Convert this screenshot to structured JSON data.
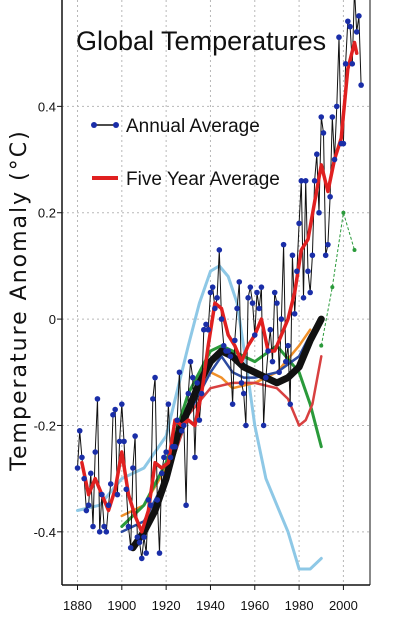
{
  "chart_data": {
    "type": "line",
    "title": "Global Temperatures",
    "xlabel": "",
    "ylabel": "Temperature Anomaly (°C)",
    "xlim": [
      1873,
      2012
    ],
    "ylim": [
      -0.5,
      0.6
    ],
    "x_ticks": [
      1880,
      1900,
      1920,
      1940,
      1960,
      1980,
      2000
    ],
    "y_ticks": [
      -0.4,
      -0.2,
      0,
      0.2,
      0.4
    ],
    "y_tick_labels": [
      "-0.4",
      "-0.2",
      "0",
      "0.2",
      "0.4"
    ],
    "grid": "dotted",
    "legend": {
      "position": "top-left",
      "entries": [
        {
          "label": "Annual Average",
          "color": "#1a2ea8",
          "style": "line-with-markers"
        },
        {
          "label": "Five Year Average",
          "color": "#e02020",
          "style": "thick-line"
        }
      ]
    },
    "series": [
      {
        "name": "Annual Average",
        "color": "#1a2ea8",
        "line_color": "#111111",
        "markers": true,
        "x": [
          1880,
          1881,
          1882,
          1883,
          1884,
          1885,
          1886,
          1887,
          1888,
          1889,
          1890,
          1891,
          1892,
          1893,
          1894,
          1895,
          1896,
          1897,
          1898,
          1899,
          1900,
          1901,
          1902,
          1903,
          1904,
          1905,
          1906,
          1907,
          1908,
          1909,
          1910,
          1911,
          1912,
          1913,
          1914,
          1915,
          1916,
          1917,
          1918,
          1919,
          1920,
          1921,
          1922,
          1923,
          1924,
          1925,
          1926,
          1927,
          1928,
          1929,
          1930,
          1931,
          1932,
          1933,
          1934,
          1935,
          1936,
          1937,
          1938,
          1939,
          1940,
          1941,
          1942,
          1943,
          1944,
          1945,
          1946,
          1947,
          1948,
          1949,
          1950,
          1951,
          1952,
          1953,
          1954,
          1955,
          1956,
          1957,
          1958,
          1959,
          1960,
          1961,
          1962,
          1963,
          1964,
          1965,
          1966,
          1967,
          1968,
          1969,
          1970,
          1971,
          1972,
          1973,
          1974,
          1975,
          1976,
          1977,
          1978,
          1979,
          1980,
          1981,
          1982,
          1983,
          1984,
          1985,
          1986,
          1987,
          1988,
          1989,
          1990,
          1991,
          1992,
          1993,
          1994,
          1995,
          1996,
          1997,
          1998,
          1999,
          2000,
          2001,
          2002,
          2003,
          2004,
          2005,
          2006,
          2007,
          2008
        ],
        "values": [
          -0.28,
          -0.21,
          -0.26,
          -0.3,
          -0.36,
          -0.35,
          -0.29,
          -0.39,
          -0.25,
          -0.15,
          -0.4,
          -0.33,
          -0.39,
          -0.4,
          -0.35,
          -0.31,
          -0.18,
          -0.17,
          -0.33,
          -0.23,
          -0.16,
          -0.23,
          -0.32,
          -0.39,
          -0.43,
          -0.28,
          -0.22,
          -0.41,
          -0.42,
          -0.45,
          -0.41,
          -0.44,
          -0.34,
          -0.35,
          -0.15,
          -0.11,
          -0.34,
          -0.44,
          -0.29,
          -0.26,
          -0.25,
          -0.16,
          -0.26,
          -0.24,
          -0.24,
          -0.19,
          -0.1,
          -0.21,
          -0.2,
          -0.35,
          -0.14,
          -0.08,
          -0.11,
          -0.26,
          -0.12,
          -0.19,
          -0.14,
          -0.02,
          -0.01,
          -0.02,
          0.05,
          0.06,
          0.02,
          0.04,
          0.13,
          0.0,
          -0.05,
          -0.06,
          -0.06,
          -0.07,
          -0.16,
          -0.04,
          0.02,
          0.07,
          -0.12,
          -0.14,
          -0.2,
          0.04,
          0.06,
          0.03,
          -0.03,
          0.05,
          0.02,
          0.06,
          -0.2,
          -0.11,
          -0.06,
          -0.02,
          -0.08,
          0.05,
          0.03,
          -0.1,
          0.0,
          0.14,
          -0.08,
          -0.05,
          -0.16,
          0.12,
          0.01,
          0.09,
          0.18,
          0.26,
          0.04,
          0.26,
          0.09,
          0.05,
          0.12,
          0.26,
          0.31,
          0.2,
          0.38,
          0.35,
          0.12,
          0.14,
          0.23,
          0.38,
          0.3,
          0.4,
          0.53,
          0.33,
          0.33,
          0.48,
          0.56,
          0.55,
          0.48,
          0.62,
          0.54,
          0.57,
          0.44
        ]
      },
      {
        "name": "Five Year Average",
        "color": "#e02020",
        "x": [
          1882,
          1885,
          1888,
          1891,
          1894,
          1897,
          1900,
          1903,
          1906,
          1909,
          1912,
          1915,
          1918,
          1921,
          1924,
          1927,
          1930,
          1933,
          1936,
          1939,
          1942,
          1945,
          1948,
          1951,
          1954,
          1957,
          1960,
          1963,
          1966,
          1969,
          1972,
          1975,
          1978,
          1981,
          1984,
          1987,
          1990,
          1993,
          1996,
          1999,
          2002,
          2005,
          2006
        ],
        "values": [
          -0.27,
          -0.33,
          -0.3,
          -0.33,
          -0.36,
          -0.32,
          -0.25,
          -0.33,
          -0.37,
          -0.4,
          -0.36,
          -0.27,
          -0.28,
          -0.27,
          -0.19,
          -0.2,
          -0.19,
          -0.2,
          -0.14,
          -0.05,
          0.03,
          0.02,
          -0.03,
          -0.05,
          -0.08,
          -0.05,
          -0.03,
          0.0,
          -0.06,
          -0.06,
          -0.03,
          0.0,
          0.05,
          0.13,
          0.15,
          0.22,
          0.29,
          0.24,
          0.3,
          0.34,
          0.47,
          0.52,
          0.5
        ]
      },
      {
        "color": "#8ec8e6",
        "x": [
          1880,
          1890,
          1900,
          1910,
          1920,
          1930,
          1935,
          1940,
          1944,
          1948,
          1952,
          1956,
          1960,
          1965,
          1970,
          1975,
          1980,
          1985,
          1990
        ],
        "values": [
          -0.36,
          -0.35,
          -0.3,
          -0.28,
          -0.22,
          -0.05,
          0.03,
          0.09,
          0.1,
          0.08,
          0.03,
          -0.08,
          -0.2,
          -0.3,
          -0.35,
          -0.4,
          -0.47,
          -0.47,
          -0.45
        ]
      },
      {
        "color": "#111111",
        "x": [
          1905,
          1910,
          1915,
          1920,
          1925,
          1930,
          1935,
          1940,
          1945,
          1950,
          1955,
          1960,
          1965,
          1970,
          1975,
          1980,
          1985,
          1990
        ],
        "values": [
          -0.43,
          -0.4,
          -0.36,
          -0.3,
          -0.22,
          -0.17,
          -0.12,
          -0.08,
          -0.06,
          -0.07,
          -0.09,
          -0.1,
          -0.11,
          -0.12,
          -0.11,
          -0.09,
          -0.04,
          0.0
        ]
      },
      {
        "color": "#f0902a",
        "x": [
          1900,
          1910,
          1920,
          1930,
          1940,
          1945,
          1950,
          1960,
          1970,
          1980,
          1985
        ],
        "values": [
          -0.37,
          -0.35,
          -0.28,
          -0.17,
          -0.1,
          -0.11,
          -0.13,
          -0.12,
          -0.1,
          -0.05,
          -0.02
        ]
      },
      {
        "color": "#2a9a3a",
        "x": [
          1900,
          1910,
          1920,
          1930,
          1940,
          1945,
          1950,
          1960,
          1970,
          1980,
          1985,
          1990
        ],
        "values": [
          -0.39,
          -0.35,
          -0.27,
          -0.14,
          -0.06,
          -0.05,
          -0.06,
          -0.08,
          -0.05,
          -0.1,
          -0.16,
          -0.24
        ]
      },
      {
        "color": "#2c4aa0",
        "x": [
          1900,
          1910,
          1920,
          1930,
          1940,
          1945,
          1950,
          1955,
          1960,
          1970,
          1980,
          1985,
          1990
        ],
        "values": [
          -0.4,
          -0.38,
          -0.3,
          -0.18,
          -0.1,
          -0.07,
          -0.1,
          -0.11,
          -0.11,
          -0.1,
          -0.07,
          -0.03,
          0.0
        ]
      },
      {
        "color": "#d84040",
        "x": [
          1920,
          1930,
          1940,
          1950,
          1960,
          1970,
          1975,
          1980,
          1983,
          1986,
          1990
        ],
        "values": [
          -0.3,
          -0.18,
          -0.13,
          -0.12,
          -0.12,
          -0.13,
          -0.15,
          -0.2,
          -0.19,
          -0.16,
          -0.07
        ]
      },
      {
        "color": "#2a9a3a",
        "style": "dashed-with-markers",
        "x": [
          1990,
          1995,
          2000,
          2005
        ],
        "values": [
          -0.05,
          0.06,
          0.2,
          0.13
        ]
      }
    ]
  }
}
